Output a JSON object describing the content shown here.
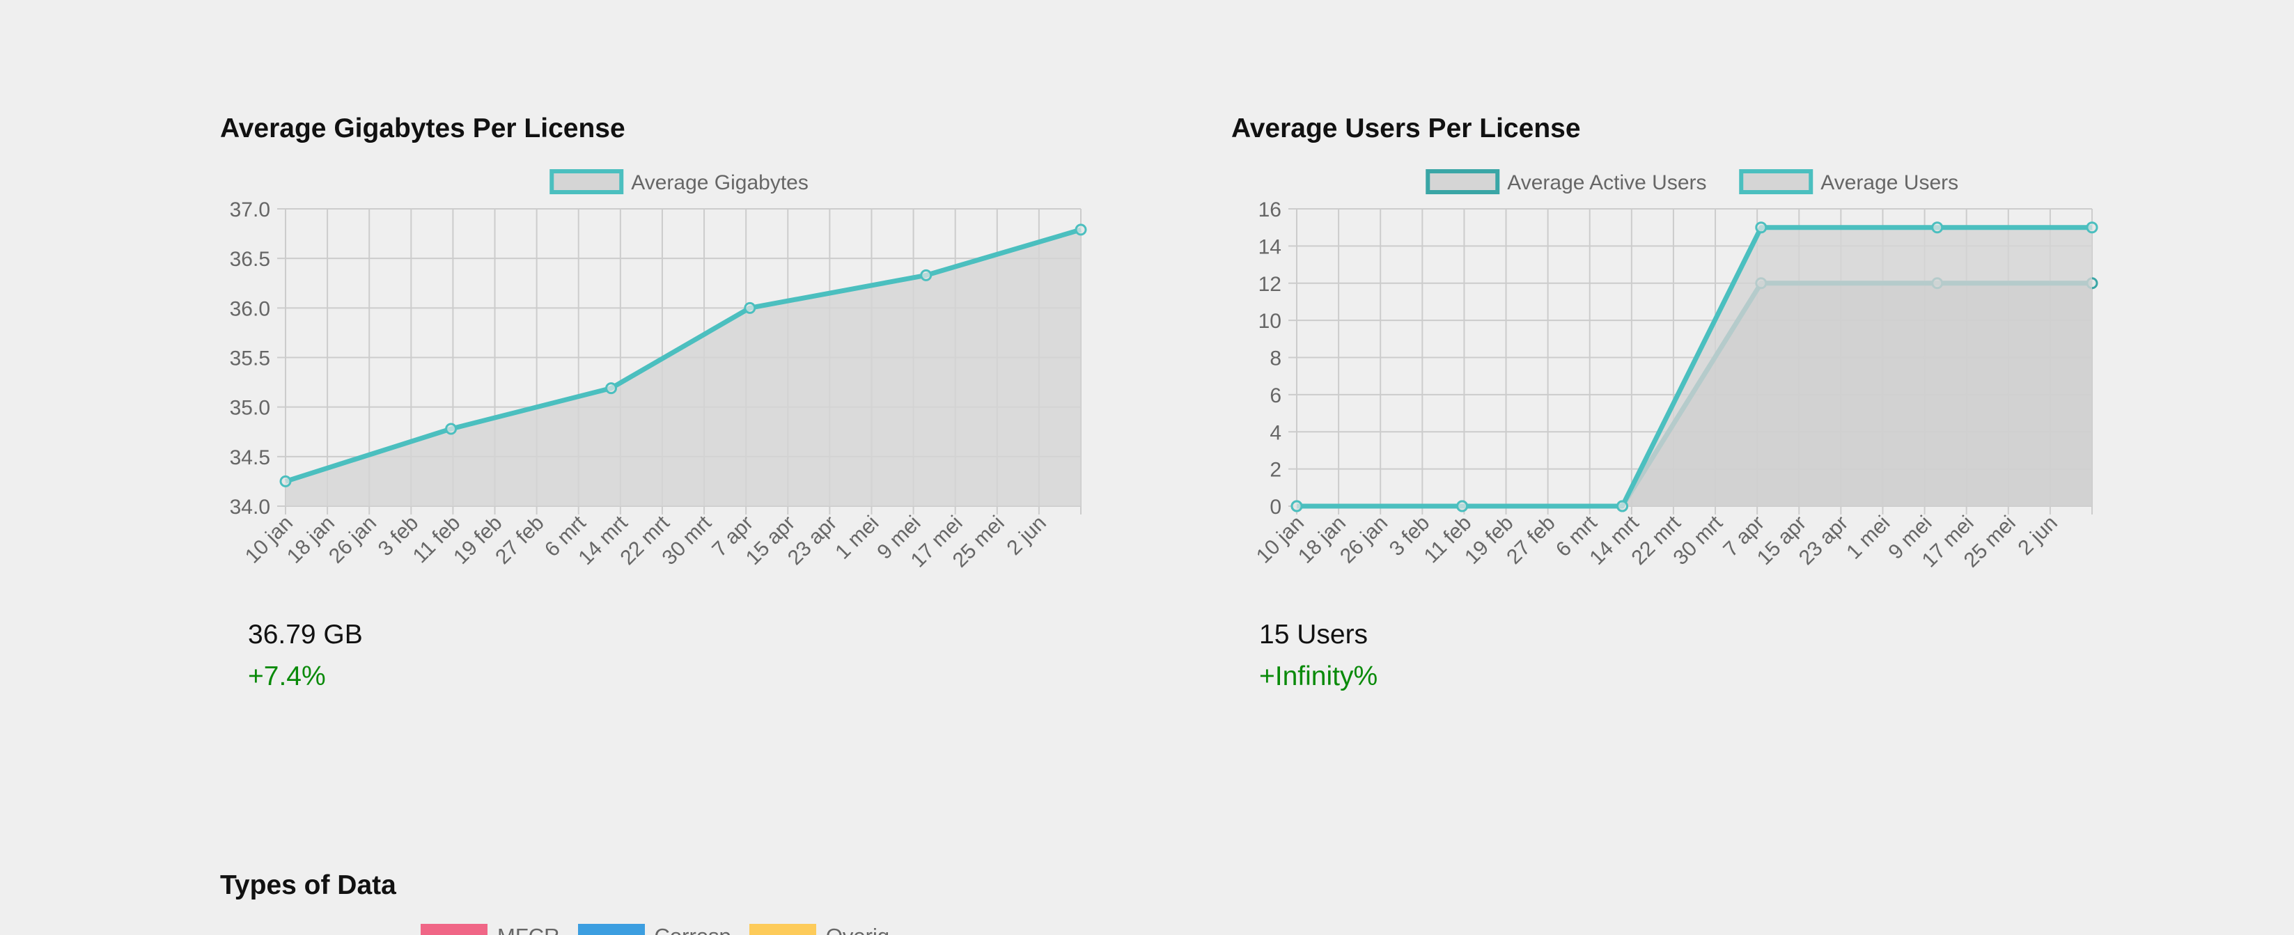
{
  "charts": {
    "left": {
      "title": "Average Gigabytes Per License",
      "metric_value": "36.79 GB",
      "metric_change": "+7.4%",
      "chart_data": {
        "type": "line",
        "title": "Average Gigabytes Per License",
        "xlabel": "",
        "ylabel": "",
        "categories": [
          "10 jan",
          "18 jan",
          "26 jan",
          "3 feb",
          "11 feb",
          "19 feb",
          "27 feb",
          "6 mrt",
          "14 mrt",
          "22 mrt",
          "30 mrt",
          "7 apr",
          "15 apr",
          "23 apr",
          "1 mei",
          "9 mei",
          "17 mei",
          "25 mei",
          "2 jun"
        ],
        "x_start": "2019-01-10",
        "x_end": "2019-06-08",
        "ylim": [
          34.0,
          37.0
        ],
        "yticks": [
          "34.0",
          "34.5",
          "35.0",
          "35.5",
          "36.0",
          "36.5",
          "37.0"
        ],
        "grid": true,
        "legend_position": "top",
        "series": [
          {
            "name": "Average Gigabytes",
            "color": "#4bbfbf",
            "fill": "#d5d5d5",
            "points": [
              {
                "x": "2019-01-10",
                "y": 34.25
              },
              {
                "x": "2019-02-10",
                "y": 34.78
              },
              {
                "x": "2019-03-12",
                "y": 35.19
              },
              {
                "x": "2019-04-07",
                "y": 36.0
              },
              {
                "x": "2019-05-10",
                "y": 36.33
              },
              {
                "x": "2019-06-08",
                "y": 36.79
              }
            ]
          }
        ]
      }
    },
    "right": {
      "title": "Average Users Per License",
      "metric_value": "15 Users",
      "metric_change": "+Infinity%",
      "chart_data": {
        "type": "line",
        "title": "Average Users Per License",
        "xlabel": "",
        "ylabel": "",
        "categories": [
          "10 jan",
          "18 jan",
          "26 jan",
          "3 feb",
          "11 feb",
          "19 feb",
          "27 feb",
          "6 mrt",
          "14 mrt",
          "22 mrt",
          "30 mrt",
          "7 apr",
          "15 apr",
          "23 apr",
          "1 mei",
          "9 mei",
          "17 mei",
          "25 mei",
          "2 jun"
        ],
        "x_start": "2019-01-10",
        "x_end": "2019-06-08",
        "ylim": [
          0,
          16
        ],
        "yticks": [
          "0",
          "2",
          "4",
          "6",
          "8",
          "10",
          "12",
          "14",
          "16"
        ],
        "grid": true,
        "legend_position": "top",
        "series": [
          {
            "name": "Average Active Users",
            "color": "#3aa6a6",
            "fill": "#bababa",
            "points": [
              {
                "x": "2019-01-10",
                "y": 0
              },
              {
                "x": "2019-02-10",
                "y": 0
              },
              {
                "x": "2019-03-12",
                "y": 0
              },
              {
                "x": "2019-04-07",
                "y": 12
              },
              {
                "x": "2019-05-10",
                "y": 12
              },
              {
                "x": "2019-06-08",
                "y": 12
              }
            ]
          },
          {
            "name": "Average Users",
            "color": "#4bbfbf",
            "fill": "#d5d5d5",
            "points": [
              {
                "x": "2019-01-10",
                "y": 0
              },
              {
                "x": "2019-02-10",
                "y": 0
              },
              {
                "x": "2019-03-12",
                "y": 0
              },
              {
                "x": "2019-04-07",
                "y": 15
              },
              {
                "x": "2019-05-10",
                "y": 15
              },
              {
                "x": "2019-06-08",
                "y": 15
              }
            ]
          }
        ]
      }
    }
  },
  "types_of_data": {
    "title": "Types of Data",
    "legend": [
      {
        "label": "MFCR",
        "color": "#f06686"
      },
      {
        "label": "Corresp",
        "color": "#3c9ee0"
      },
      {
        "label": "Overig",
        "color": "#fdcb5a"
      }
    ]
  }
}
